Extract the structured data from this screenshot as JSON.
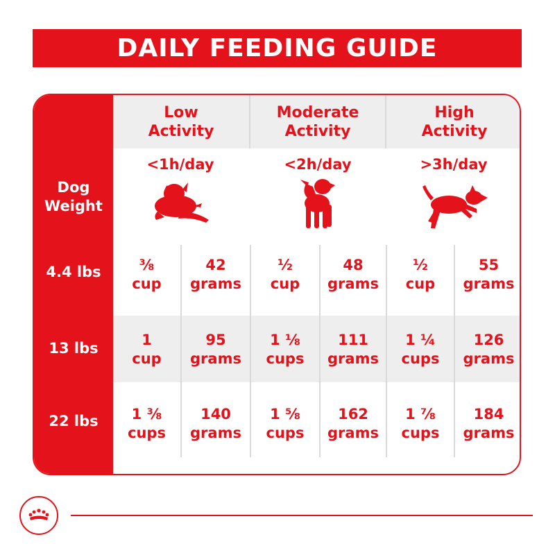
{
  "title": "DAILY FEEDING GUIDE",
  "colors": {
    "brand_red": "#e3121b",
    "band_gray": "#eeeeee"
  },
  "weight_header": {
    "line1": "Dog",
    "line2": "Weight"
  },
  "activities": [
    {
      "line1": "Low",
      "line2": "Activity",
      "duration": "<1h/day",
      "icon": "lying-dog-icon"
    },
    {
      "line1": "Moderate",
      "line2": "Activity",
      "duration": "<2h/day",
      "icon": "standing-dog-icon"
    },
    {
      "line1": "High",
      "line2": "Activity",
      "duration": ">3h/day",
      "icon": "running-dog-icon"
    }
  ],
  "rows": [
    {
      "weight": "4.4 lbs",
      "cells": [
        {
          "amount": "⅜",
          "unit": "cup",
          "grams": "42",
          "grams_unit": "grams"
        },
        {
          "amount": "½",
          "unit": "cup",
          "grams": "48",
          "grams_unit": "grams"
        },
        {
          "amount": "½",
          "unit": "cup",
          "grams": "55",
          "grams_unit": "grams"
        }
      ]
    },
    {
      "weight": "13 lbs",
      "cells": [
        {
          "amount": "1",
          "unit": "cup",
          "grams": "95",
          "grams_unit": "grams"
        },
        {
          "amount": "1 ⅛",
          "unit": "cups",
          "grams": "111",
          "grams_unit": "grams"
        },
        {
          "amount": "1 ¼",
          "unit": "cups",
          "grams": "126",
          "grams_unit": "grams"
        }
      ]
    },
    {
      "weight": "22 lbs",
      "cells": [
        {
          "amount": "1 ⅜",
          "unit": "cups",
          "grams": "140",
          "grams_unit": "grams"
        },
        {
          "amount": "1 ⅝",
          "unit": "cups",
          "grams": "162",
          "grams_unit": "grams"
        },
        {
          "amount": "1 ⅞",
          "unit": "cups",
          "grams": "184",
          "grams_unit": "grams"
        }
      ]
    }
  ],
  "footer": {
    "logo_icon": "royal-crown-logo-icon"
  }
}
